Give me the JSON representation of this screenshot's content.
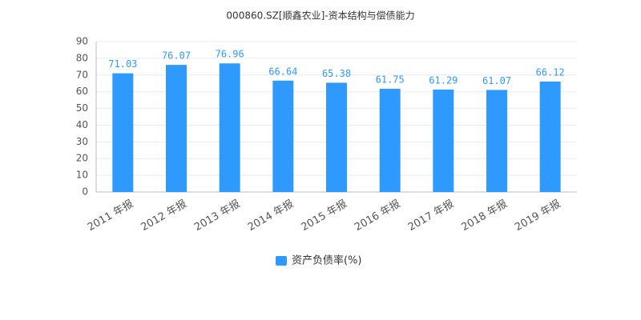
{
  "chart_data": {
    "type": "bar",
    "title": "000860.SZ[顺鑫农业]-资本结构与偿债能力",
    "categories": [
      "2011 年报",
      "2012 年报",
      "2013 年报",
      "2014 年报",
      "2015 年报",
      "2016 年报",
      "2017 年报",
      "2018 年报",
      "2019 年报"
    ],
    "series": [
      {
        "name": "资产负债率(%)",
        "color": "#2e9afe",
        "values": [
          71.03,
          76.07,
          76.96,
          66.64,
          65.38,
          61.75,
          61.29,
          61.07,
          66.12
        ]
      }
    ],
    "ylim": [
      0,
      90
    ],
    "yticks": [
      0,
      10,
      20,
      30,
      40,
      50,
      60,
      70,
      80,
      90
    ],
    "grid": true,
    "legend": "bottom",
    "data_labels": true
  }
}
